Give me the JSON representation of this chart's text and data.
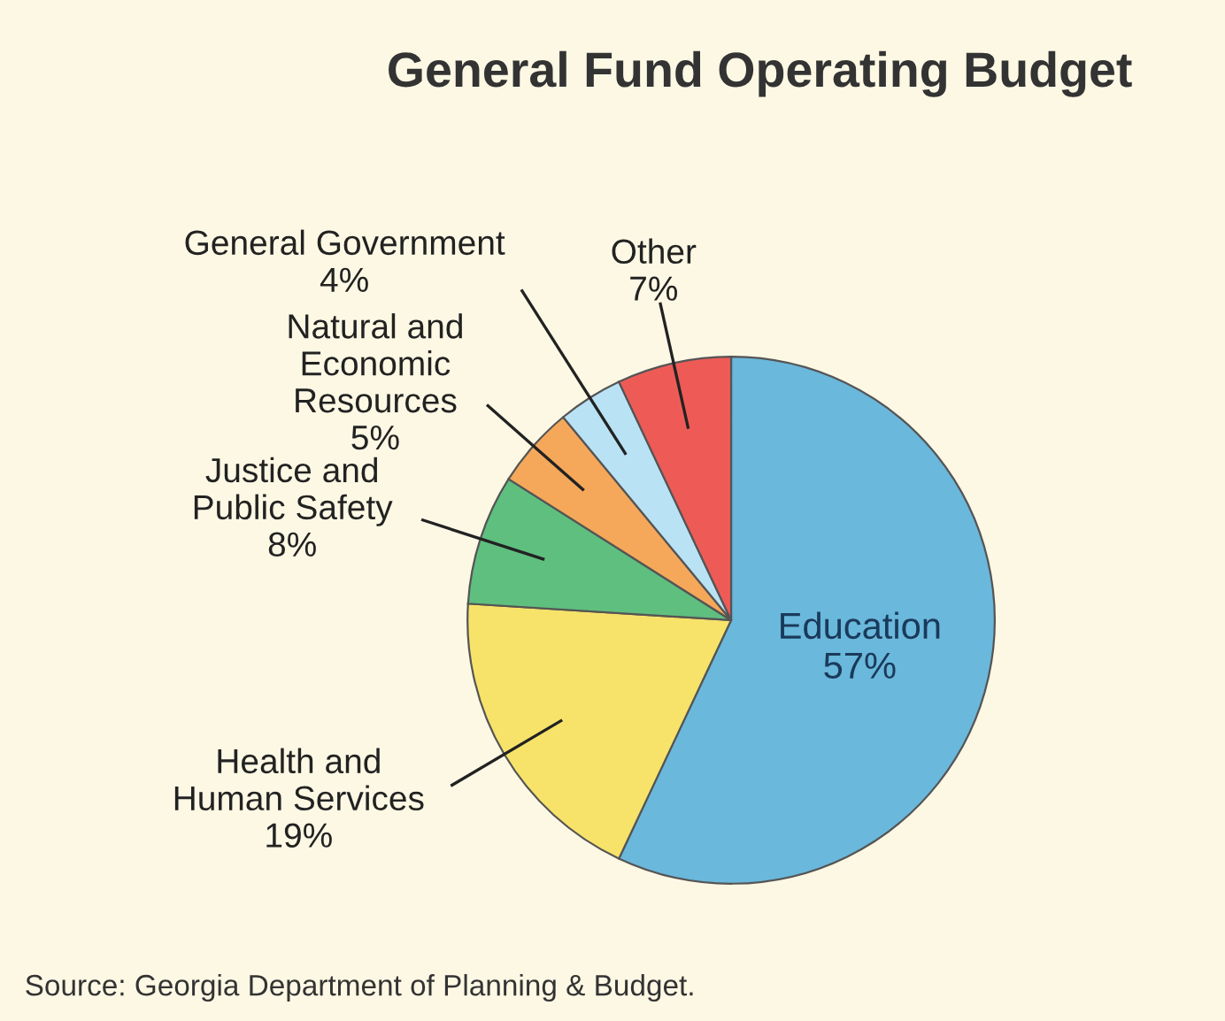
{
  "chart_data": {
    "type": "pie",
    "title": "General Fund Operating Budget",
    "categories": [
      "Education",
      "Health and\nHuman Services",
      "Justice and\nPublic Safety",
      "Natural and\nEconomic\nResources",
      "General Government",
      "Other"
    ],
    "values": [
      57,
      19,
      8,
      5,
      4,
      7
    ],
    "colors": [
      "#6ab8dc",
      "#f7e36a",
      "#5fbf7f",
      "#f5a85a",
      "#b9e2f5",
      "#ee5b57"
    ],
    "value_labels": [
      "57%",
      "19%",
      "8%",
      "5%",
      "4%",
      "7%"
    ],
    "annotations": [
      "Source: Georgia Department of Planning & Budget."
    ]
  }
}
